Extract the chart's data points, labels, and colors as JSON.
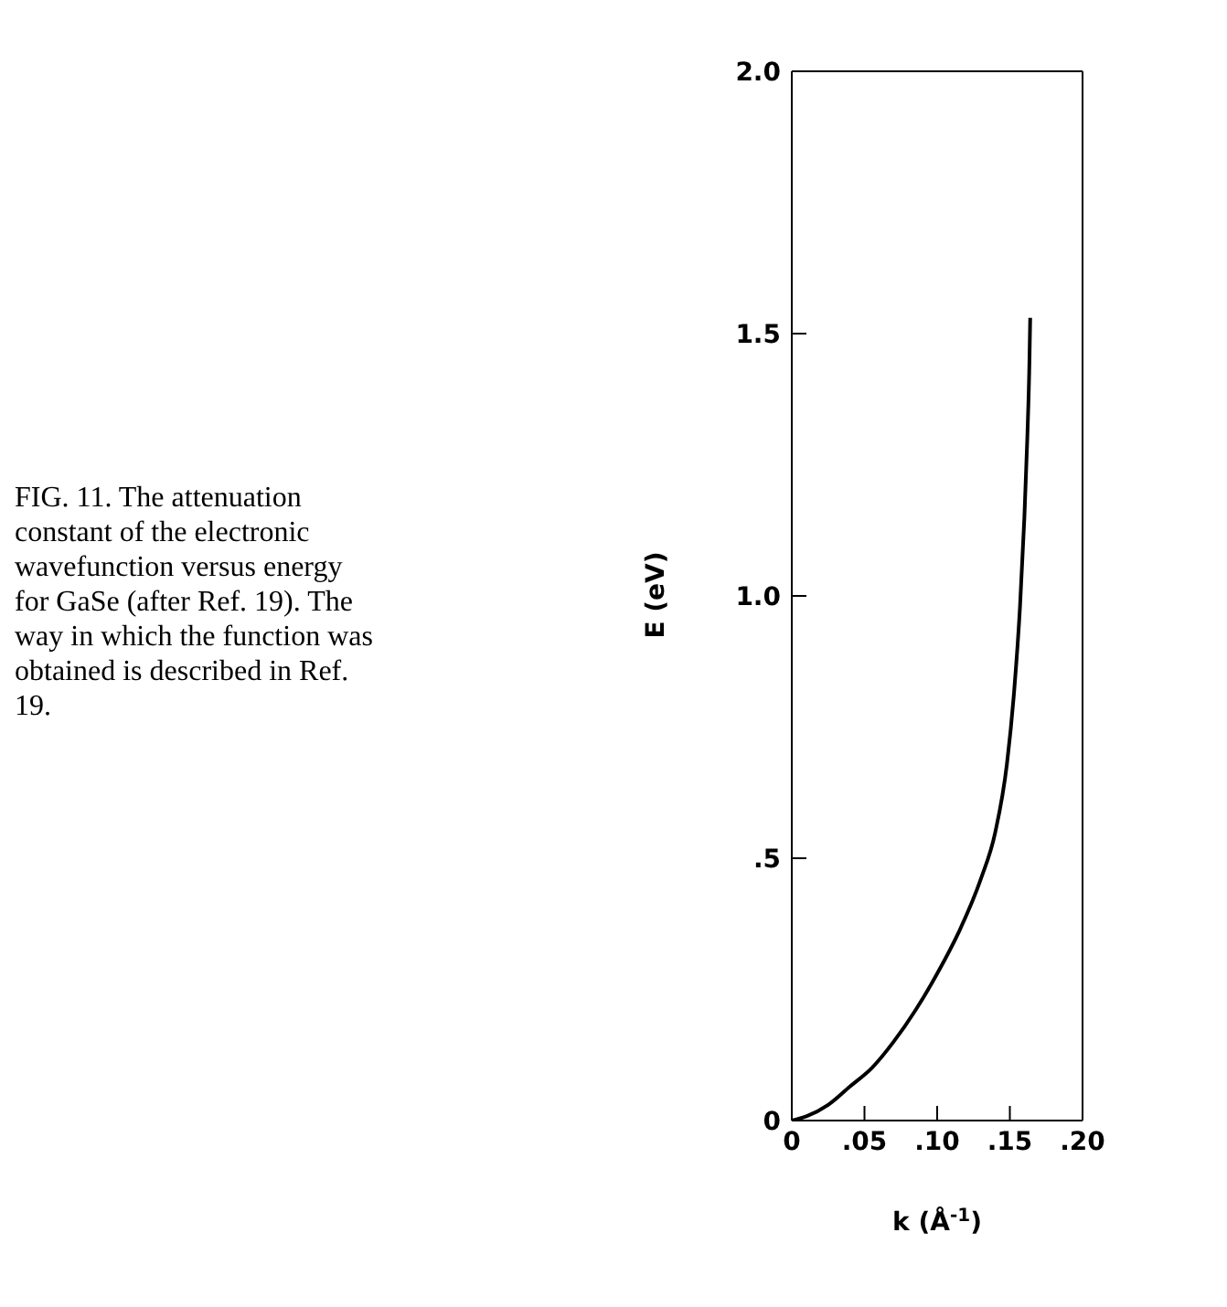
{
  "chart_data": {
    "type": "line",
    "xlabel": "k (Å$^{-1}$)",
    "ylabel": "E (eV)",
    "annotations": [
      "FIG. 11. The attenuation constant of the electronic wavefunction versus energy for GaSe (after Ref. 19). The way in which the function was obtained is described in Ref. 19."
    ],
    "x": [
      0,
      0.01,
      0.025,
      0.04,
      0.055,
      0.07,
      0.085,
      0.1,
      0.115,
      0.13,
      0.14,
      0.148,
      0.153,
      0.157,
      0.16,
      0.162,
      0.1635,
      0.164
    ],
    "series": [
      {
        "color": "#000000",
        "values": [
          0,
          0.008,
          0.03,
          0.065,
          0.1,
          0.15,
          0.21,
          0.28,
          0.36,
          0.46,
          0.55,
          0.68,
          0.82,
          0.98,
          1.15,
          1.3,
          1.45,
          1.53
        ]
      }
    ],
    "xlim": [
      0,
      0.2
    ],
    "ylim": [
      0,
      2
    ],
    "xticks": [
      0,
      {
        "value": 0.05,
        "label": ".05"
      },
      {
        "value": 0.1,
        "label": ".10"
      },
      {
        "value": 0.15,
        "label": ".15"
      },
      {
        "value": 0.2,
        "label": ".20"
      }
    ],
    "yticks": [
      0,
      {
        "value": 0.5,
        "label": ".5"
      },
      {
        "value": 1,
        "label": "1.0"
      },
      {
        "value": 1.5,
        "label": "1.5"
      },
      {
        "value": 2,
        "label": "2.0"
      }
    ],
    "marker": "none",
    "line_style": "solid"
  }
}
